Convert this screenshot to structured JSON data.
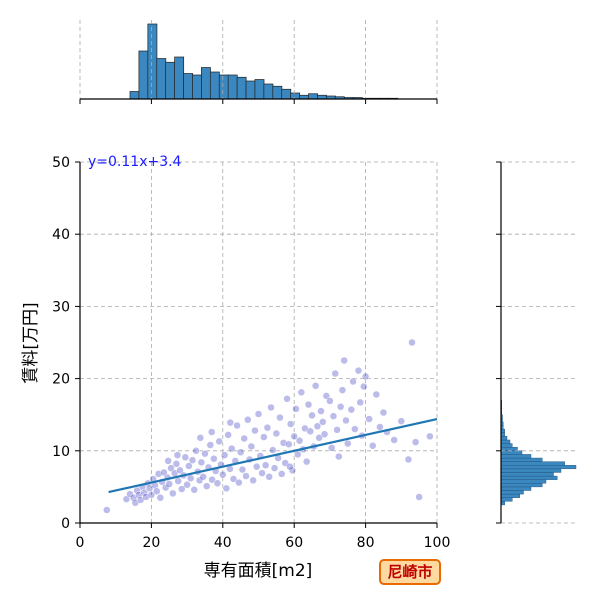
{
  "chart_data": {
    "type": "scatter",
    "title": "",
    "xlabel": "専有面積[m2]",
    "ylabel": "賃料[万円]",
    "xlim": [
      0,
      100
    ],
    "ylim": [
      0,
      50
    ],
    "xticks": [
      "0",
      "20",
      "40",
      "60",
      "80",
      "100"
    ],
    "yticks": [
      "0",
      "10",
      "20",
      "30",
      "40",
      "50"
    ],
    "grid": true,
    "regression": {
      "label": "y=0.11x+3.4",
      "slope": 0.11,
      "intercept": 3.4,
      "x_range": [
        8,
        100
      ]
    },
    "badge": "尼崎市",
    "point_color": "#2222bb",
    "line_color": "#1f77b4",
    "hist_color": "#3b87bf",
    "x_histogram": {
      "bin_width": 2.55,
      "bins": [
        [
          14,
          0.1
        ],
        [
          16.5,
          0.64
        ],
        [
          19,
          1.0
        ],
        [
          21.5,
          0.54
        ],
        [
          24,
          0.49
        ],
        [
          26.5,
          0.56
        ],
        [
          29,
          0.34
        ],
        [
          31.5,
          0.32
        ],
        [
          34,
          0.42
        ],
        [
          36.5,
          0.36
        ],
        [
          39,
          0.32
        ],
        [
          41.5,
          0.32
        ],
        [
          44,
          0.29
        ],
        [
          46.5,
          0.24
        ],
        [
          49,
          0.26
        ],
        [
          51.5,
          0.2
        ],
        [
          54,
          0.17
        ],
        [
          56.5,
          0.13
        ],
        [
          59,
          0.08
        ],
        [
          61.5,
          0.05
        ],
        [
          64,
          0.07
        ],
        [
          66.5,
          0.05
        ],
        [
          69,
          0.04
        ],
        [
          71.5,
          0.03
        ],
        [
          74,
          0.02
        ],
        [
          76.5,
          0.02
        ],
        [
          79,
          0.01
        ],
        [
          81.5,
          0.01
        ],
        [
          84,
          0.01
        ],
        [
          86.5,
          0.01
        ]
      ]
    },
    "y_histogram": {
      "bin_width": 0.5,
      "bins": [
        [
          2.5,
          0.05
        ],
        [
          3,
          0.15
        ],
        [
          3.5,
          0.25
        ],
        [
          4,
          0.3
        ],
        [
          4.5,
          0.4
        ],
        [
          5,
          0.55
        ],
        [
          5.5,
          0.6
        ],
        [
          6,
          0.75
        ],
        [
          6.5,
          0.7
        ],
        [
          7,
          0.8
        ],
        [
          7.5,
          1.0
        ],
        [
          8,
          0.85
        ],
        [
          8.5,
          0.55
        ],
        [
          9,
          0.4
        ],
        [
          9.5,
          0.28
        ],
        [
          10,
          0.22
        ],
        [
          10.5,
          0.15
        ],
        [
          11,
          0.12
        ],
        [
          11.5,
          0.08
        ],
        [
          12,
          0.05
        ],
        [
          12.5,
          0.05
        ],
        [
          13,
          0.03
        ],
        [
          13.5,
          0.03
        ],
        [
          14,
          0.02
        ],
        [
          14.5,
          0.02
        ],
        [
          15,
          0.01
        ],
        [
          15.5,
          0.01
        ],
        [
          16,
          0.01
        ],
        [
          16.5,
          0.01
        ]
      ]
    },
    "points": [
      [
        7.5,
        1.8
      ],
      [
        13,
        3.3
      ],
      [
        14,
        4.0
      ],
      [
        15,
        3.5
      ],
      [
        15.5,
        2.8
      ],
      [
        16,
        4.5
      ],
      [
        16.5,
        3.9
      ],
      [
        17,
        3.2
      ],
      [
        17.5,
        5.0
      ],
      [
        18,
        4.2
      ],
      [
        18.5,
        3.6
      ],
      [
        19,
        5.5
      ],
      [
        19.5,
        4.8
      ],
      [
        20,
        3.9
      ],
      [
        20.5,
        6.1
      ],
      [
        21,
        5.2
      ],
      [
        21.5,
        4.4
      ],
      [
        22,
        6.8
      ],
      [
        22.5,
        3.5
      ],
      [
        23,
        5.7
      ],
      [
        23.5,
        7.0
      ],
      [
        24,
        4.9
      ],
      [
        24.5,
        6.3
      ],
      [
        25,
        5.4
      ],
      [
        25.5,
        7.6
      ],
      [
        26,
        4.1
      ],
      [
        26.5,
        6.9
      ],
      [
        27,
        8.2
      ],
      [
        27.5,
        5.8
      ],
      [
        28,
        7.3
      ],
      [
        28.5,
        4.7
      ],
      [
        29,
        6.6
      ],
      [
        29.5,
        9.1
      ],
      [
        30,
        5.3
      ],
      [
        30.5,
        7.9
      ],
      [
        31,
        6.2
      ],
      [
        31.5,
        8.7
      ],
      [
        32,
        4.6
      ],
      [
        32.5,
        10.0
      ],
      [
        33,
        7.1
      ],
      [
        33.5,
        5.9
      ],
      [
        34,
        8.4
      ],
      [
        34.5,
        6.4
      ],
      [
        35,
        9.6
      ],
      [
        35.5,
        5.1
      ],
      [
        36,
        7.7
      ],
      [
        36.5,
        10.8
      ],
      [
        37,
        6.0
      ],
      [
        37.5,
        8.9
      ],
      [
        38,
        7.2
      ],
      [
        38.5,
        5.5
      ],
      [
        39,
        11.3
      ],
      [
        39.5,
        8.1
      ],
      [
        40,
        6.7
      ],
      [
        40.5,
        9.4
      ],
      [
        41,
        4.8
      ],
      [
        41.5,
        12.2
      ],
      [
        42,
        7.5
      ],
      [
        42.5,
        10.3
      ],
      [
        43,
        6.1
      ],
      [
        43.5,
        8.6
      ],
      [
        44,
        13.5
      ],
      [
        44.5,
        5.6
      ],
      [
        45,
        9.8
      ],
      [
        45.5,
        7.4
      ],
      [
        46,
        11.7
      ],
      [
        46.5,
        6.5
      ],
      [
        47,
        14.3
      ],
      [
        47.5,
        8.8
      ],
      [
        48,
        10.6
      ],
      [
        48.5,
        5.9
      ],
      [
        49,
        12.8
      ],
      [
        49.5,
        7.8
      ],
      [
        50,
        15.1
      ],
      [
        50.5,
        9.3
      ],
      [
        51,
        6.9
      ],
      [
        51.5,
        11.9
      ],
      [
        52,
        8.0
      ],
      [
        52.5,
        13.2
      ],
      [
        53,
        6.4
      ],
      [
        53.5,
        16.0
      ],
      [
        54,
        10.1
      ],
      [
        54.5,
        7.6
      ],
      [
        55,
        12.4
      ],
      [
        55.5,
        9.0
      ],
      [
        56,
        14.6
      ],
      [
        56.5,
        6.8
      ],
      [
        57,
        11.1
      ],
      [
        57.5,
        8.3
      ],
      [
        58,
        17.2
      ],
      [
        58.5,
        10.9
      ],
      [
        59,
        13.7
      ],
      [
        59.5,
        7.3
      ],
      [
        60,
        12.0
      ],
      [
        60.5,
        15.8
      ],
      [
        61,
        9.5
      ],
      [
        61.5,
        11.4
      ],
      [
        62,
        18.1
      ],
      [
        62.5,
        10.2
      ],
      [
        63,
        13.1
      ],
      [
        63.5,
        8.5
      ],
      [
        64,
        16.4
      ],
      [
        64.5,
        12.7
      ],
      [
        65,
        14.9
      ],
      [
        65.5,
        10.6
      ],
      [
        66,
        19.0
      ],
      [
        66.5,
        13.4
      ],
      [
        67,
        11.8
      ],
      [
        67.5,
        15.5
      ],
      [
        68,
        14.0
      ],
      [
        68.5,
        12.3
      ],
      [
        69,
        17.6
      ],
      [
        70,
        16.9
      ],
      [
        70.5,
        10.4
      ],
      [
        71,
        14.8
      ],
      [
        71.5,
        20.7
      ],
      [
        72,
        12.9
      ],
      [
        72.5,
        9.2
      ],
      [
        73,
        16.1
      ],
      [
        73.5,
        18.4
      ],
      [
        74,
        22.5
      ],
      [
        74.5,
        14.2
      ],
      [
        75,
        11.0
      ],
      [
        76,
        15.7
      ],
      [
        76.5,
        19.6
      ],
      [
        77,
        13.0
      ],
      [
        78,
        21.1
      ],
      [
        78.5,
        16.7
      ],
      [
        79,
        12.1
      ],
      [
        79.5,
        18.9
      ],
      [
        80,
        20.3
      ],
      [
        81,
        14.4
      ],
      [
        82,
        10.7
      ],
      [
        83,
        17.8
      ],
      [
        84,
        13.3
      ],
      [
        85,
        15.3
      ],
      [
        86,
        12.6
      ],
      [
        88,
        11.5
      ],
      [
        90,
        14.1
      ],
      [
        92,
        8.8
      ],
      [
        93,
        25.0
      ],
      [
        94,
        11.2
      ],
      [
        95,
        3.6
      ],
      [
        98,
        12.0
      ],
      [
        24.7,
        8.6
      ],
      [
        27.3,
        9.4
      ],
      [
        33.7,
        11.8
      ],
      [
        36.9,
        12.6
      ],
      [
        42.1,
        13.9
      ],
      [
        58.8,
        7.8
      ]
    ]
  }
}
